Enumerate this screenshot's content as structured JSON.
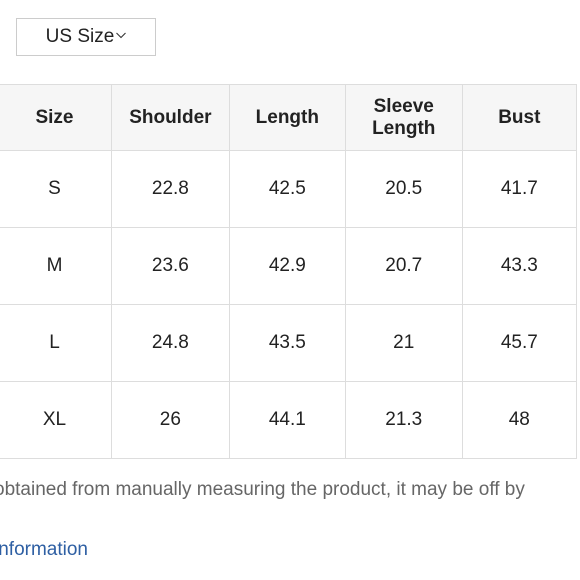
{
  "size_selector": {
    "label": "US Size",
    "icon": "chevron-down-icon"
  },
  "size_table": {
    "headers": [
      "Size",
      "Shoulder",
      "Length",
      "Sleeve Length",
      "Bust"
    ],
    "rows": [
      [
        "S",
        "22.8",
        "42.5",
        "20.5",
        "41.7"
      ],
      [
        "M",
        "23.6",
        "42.9",
        "20.7",
        "43.3"
      ],
      [
        "L",
        "24.8",
        "43.5",
        "21",
        "45.7"
      ],
      [
        "XL",
        "26",
        "44.1",
        "21.3",
        "48"
      ]
    ]
  },
  "note": "obtained from manually measuring the product, it may be off by",
  "info_link": "information",
  "colors": {
    "header_bg": "#f6f6f6",
    "border": "#dddddd",
    "link": "#2e5fa3",
    "note_text": "#666666"
  }
}
